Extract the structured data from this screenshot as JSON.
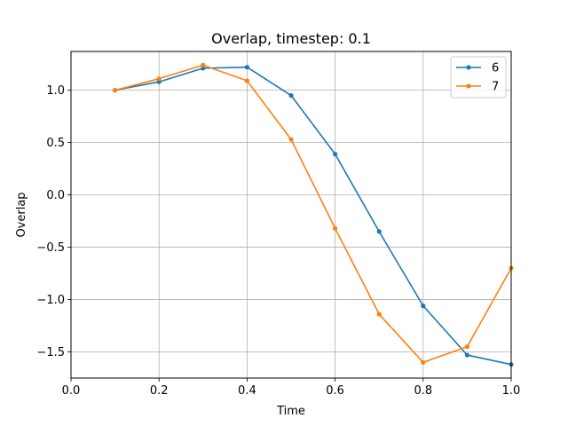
{
  "chart_data": {
    "type": "line",
    "title": "Overlap, timestep: 0.1",
    "xlabel": "Time",
    "ylabel": "Overlap",
    "xlim": [
      0.0,
      1.0
    ],
    "ylim": [
      -1.75,
      1.37
    ],
    "xticks": [
      0.0,
      0.2,
      0.4,
      0.6,
      0.8,
      1.0
    ],
    "xtick_labels": [
      "0.0",
      "0.2",
      "0.4",
      "0.6",
      "0.8",
      "1.0"
    ],
    "yticks": [
      1.0,
      0.5,
      0.0,
      -0.5,
      -1.0,
      -1.5
    ],
    "ytick_labels": [
      "1.0",
      "0.5",
      "0.0",
      "−0.5",
      "−1.0",
      "−1.5"
    ],
    "grid": true,
    "legend_position": "top-right",
    "series": [
      {
        "name": "6",
        "color": "#1f77b4",
        "x": [
          0.1,
          0.2,
          0.3,
          0.4,
          0.5,
          0.6,
          0.7,
          0.8,
          0.9,
          1.0
        ],
        "y": [
          1.0,
          1.08,
          1.21,
          1.22,
          0.95,
          0.39,
          -0.35,
          -1.06,
          -1.53,
          -1.62
        ]
      },
      {
        "name": "7",
        "color": "#ff7f0e",
        "x": [
          0.1,
          0.2,
          0.3,
          0.4,
          0.5,
          0.6,
          0.7,
          0.8,
          0.9,
          1.0
        ],
        "y": [
          1.0,
          1.11,
          1.24,
          1.09,
          0.53,
          -0.32,
          -1.14,
          -1.6,
          -1.45,
          -0.7
        ]
      }
    ]
  }
}
